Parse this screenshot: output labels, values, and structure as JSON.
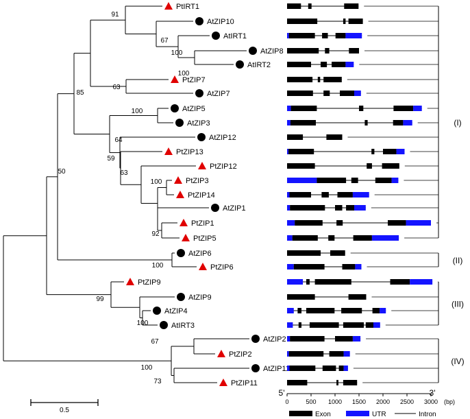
{
  "tree": {
    "bootstrap": [
      "91",
      "67",
      "100",
      "100",
      "63",
      "85",
      "100",
      "64",
      "59",
      "63",
      "100",
      "92",
      "50",
      "100",
      "99",
      "100",
      "67",
      "100",
      "73"
    ],
    "scale_label": "0.5"
  },
  "genes": [
    {
      "name": "PtIRT1",
      "species": "Populus",
      "marker": "triangle"
    },
    {
      "name": "AtZIP10",
      "species": "Arabidopsis",
      "marker": "circle"
    },
    {
      "name": "AtIRT1",
      "species": "Arabidopsis",
      "marker": "circle"
    },
    {
      "name": "AtZIP8",
      "species": "Arabidopsis",
      "marker": "circle"
    },
    {
      "name": "AtIRT2",
      "species": "Arabidopsis",
      "marker": "circle"
    },
    {
      "name": "PtZIP7",
      "species": "Populus",
      "marker": "triangle"
    },
    {
      "name": "AtZIP7",
      "species": "Arabidopsis",
      "marker": "circle"
    },
    {
      "name": "AtZIP5",
      "species": "Arabidopsis",
      "marker": "circle"
    },
    {
      "name": "AtZIP3",
      "species": "Arabidopsis",
      "marker": "circle"
    },
    {
      "name": "AtZIP12",
      "species": "Arabidopsis",
      "marker": "circle"
    },
    {
      "name": "PtZIP13",
      "species": "Populus",
      "marker": "triangle"
    },
    {
      "name": "PtZIP12",
      "species": "Populus",
      "marker": "triangle"
    },
    {
      "name": "PtZIP3",
      "species": "Populus",
      "marker": "triangle"
    },
    {
      "name": "PtZIP14",
      "species": "Populus",
      "marker": "triangle"
    },
    {
      "name": "AtZIP1",
      "species": "Arabidopsis",
      "marker": "circle"
    },
    {
      "name": "PtZIP1",
      "species": "Populus",
      "marker": "triangle"
    },
    {
      "name": "PtZIP5",
      "species": "Populus",
      "marker": "triangle"
    },
    {
      "name": "AtZIP6",
      "species": "Arabidopsis",
      "marker": "circle"
    },
    {
      "name": "PtZIP6",
      "species": "Populus",
      "marker": "triangle"
    },
    {
      "name": "PtZIP9",
      "species": "Populus",
      "marker": "triangle"
    },
    {
      "name": "AtZIP9",
      "species": "Arabidopsis",
      "marker": "circle"
    },
    {
      "name": "AtZIP4",
      "species": "Arabidopsis",
      "marker": "circle"
    },
    {
      "name": "AtIRT3",
      "species": "Arabidopsis",
      "marker": "circle"
    },
    {
      "name": "AtZIP2",
      "species": "Arabidopsis",
      "marker": "circle"
    },
    {
      "name": "PtZIP2",
      "species": "Populus",
      "marker": "triangle"
    },
    {
      "name": "AtZIP11",
      "species": "Arabidopsis",
      "marker": "circle"
    },
    {
      "name": "PtZIP11",
      "species": "Populus",
      "marker": "triangle"
    }
  ],
  "structures": [
    [
      [
        "E",
        0,
        290
      ],
      [
        "E",
        440,
        510
      ],
      [
        "E",
        1190,
        1490
      ]
    ],
    [
      [
        "E",
        0,
        630
      ],
      [
        "E",
        1170,
        1220
      ],
      [
        "E",
        1280,
        1580
      ]
    ],
    [
      [
        "U",
        0,
        40
      ],
      [
        "E",
        40,
        580
      ],
      [
        "E",
        730,
        850
      ],
      [
        "E",
        1010,
        1220
      ],
      [
        "U",
        1220,
        1560
      ]
    ],
    [
      [
        "E",
        0,
        660
      ],
      [
        "E",
        790,
        880
      ],
      [
        "E",
        1290,
        1500
      ]
    ],
    [
      [
        "E",
        0,
        500
      ],
      [
        "E",
        700,
        830
      ],
      [
        "E",
        930,
        1220
      ],
      [
        "U",
        1220,
        1390
      ]
    ],
    [
      [
        "E",
        0,
        530
      ],
      [
        "E",
        640,
        690
      ],
      [
        "E",
        760,
        1140
      ]
    ],
    [
      [
        "U",
        0,
        70
      ],
      [
        "E",
        0,
        540
      ],
      [
        "E",
        760,
        890
      ],
      [
        "E",
        1100,
        1500
      ],
      [
        "U",
        1400,
        1540
      ]
    ],
    [
      [
        "U",
        0,
        80
      ],
      [
        "E",
        80,
        620
      ],
      [
        "E",
        1500,
        1590
      ],
      [
        "E",
        2220,
        2630
      ],
      [
        "U",
        2630,
        2810
      ]
    ],
    [
      [
        "U",
        0,
        70
      ],
      [
        "E",
        70,
        600
      ],
      [
        "E",
        1620,
        1680
      ],
      [
        "E",
        2210,
        2420
      ],
      [
        "U",
        2420,
        2610
      ]
    ],
    [
      [
        "E",
        0,
        330
      ],
      [
        "E",
        820,
        1150
      ]
    ],
    [
      [
        "U",
        0,
        30
      ],
      [
        "E",
        30,
        560
      ],
      [
        "E",
        1760,
        1820
      ],
      [
        "E",
        2000,
        2280
      ],
      [
        "U",
        2280,
        2450
      ]
    ],
    [
      [
        "E",
        0,
        580
      ],
      [
        "E",
        1660,
        1770
      ],
      [
        "E",
        1980,
        2340
      ]
    ],
    [
      [
        "U",
        0,
        620
      ],
      [
        "E",
        620,
        1230
      ],
      [
        "E",
        1340,
        1480
      ],
      [
        "E",
        1840,
        2180
      ],
      [
        "U",
        2180,
        2320
      ]
    ],
    [
      [
        "U",
        0,
        50
      ],
      [
        "E",
        50,
        500
      ],
      [
        "E",
        720,
        870
      ],
      [
        "E",
        1050,
        1370
      ],
      [
        "U",
        1370,
        1710
      ]
    ],
    [
      [
        "U",
        0,
        60
      ],
      [
        "E",
        60,
        790
      ],
      [
        "E",
        1000,
        1150
      ],
      [
        "E",
        1230,
        1400
      ],
      [
        "U",
        1400,
        1640
      ]
    ],
    [
      [
        "U",
        0,
        160
      ],
      [
        "E",
        160,
        740
      ],
      [
        "E",
        1030,
        1160
      ],
      [
        "E",
        2100,
        2480
      ],
      [
        "U",
        2480,
        3000
      ]
    ],
    [
      [
        "U",
        0,
        110
      ],
      [
        "E",
        110,
        640
      ],
      [
        "E",
        860,
        990
      ],
      [
        "E",
        1380,
        1770
      ],
      [
        "U",
        1770,
        2330
      ]
    ],
    [
      [
        "E",
        0,
        700
      ],
      [
        "E",
        900,
        1210
      ]
    ],
    [
      [
        "U",
        0,
        140
      ],
      [
        "E",
        140,
        780
      ],
      [
        "E",
        1150,
        1420
      ],
      [
        "U",
        1420,
        1550
      ]
    ],
    [
      [
        "U",
        0,
        330
      ],
      [
        "E",
        400,
        470
      ],
      [
        "E",
        580,
        1340
      ],
      [
        "E",
        2150,
        2560
      ],
      [
        "U",
        2560,
        3030
      ]
    ],
    [
      [
        "E",
        0,
        580
      ],
      [
        "E",
        1280,
        1650
      ]
    ],
    [
      [
        "U",
        0,
        140
      ],
      [
        "E",
        220,
        300
      ],
      [
        "E",
        400,
        990
      ],
      [
        "E",
        1130,
        1560
      ],
      [
        "E",
        1780,
        1930
      ],
      [
        "U",
        1930,
        2060
      ]
    ],
    [
      [
        "U",
        0,
        120
      ],
      [
        "E",
        240,
        300
      ],
      [
        "E",
        470,
        1080
      ],
      [
        "E",
        1170,
        1600
      ],
      [
        "E",
        1640,
        1800
      ],
      [
        "U",
        1800,
        1940
      ]
    ],
    [
      [
        "U",
        0,
        60
      ],
      [
        "E",
        60,
        780
      ],
      [
        "E",
        1000,
        1370
      ],
      [
        "U",
        1370,
        1530
      ]
    ],
    [
      [
        "U",
        0,
        40
      ],
      [
        "E",
        40,
        760
      ],
      [
        "E",
        880,
        1180
      ],
      [
        "U",
        1180,
        1310
      ]
    ],
    [
      [
        "U",
        0,
        50
      ],
      [
        "E",
        50,
        590
      ],
      [
        "E",
        740,
        1020
      ],
      [
        "E",
        1080,
        1180
      ],
      [
        "U",
        1180,
        1270
      ]
    ],
    [
      [
        "E",
        0,
        420
      ],
      [
        "E",
        1030,
        1070
      ],
      [
        "E",
        1170,
        1460
      ]
    ]
  ],
  "groups": [
    {
      "label": "(I)"
    },
    {
      "label": "(II)"
    },
    {
      "label": "(III)"
    },
    {
      "label": "(IV)"
    }
  ],
  "axis": {
    "ticks": [
      "0",
      "500",
      "1000",
      "1500",
      "2000",
      "2500",
      "3000"
    ],
    "unit": "(bp)",
    "five_prime": "5'",
    "three_prime": "3'"
  },
  "legend": {
    "exon": "Exon",
    "utr": "UTR",
    "intron": "Intron"
  },
  "colors": {
    "exon": "#000000",
    "utr": "#1414ff",
    "marker_tri": "#e00000",
    "marker_circle": "#000000",
    "line": "#000000"
  }
}
